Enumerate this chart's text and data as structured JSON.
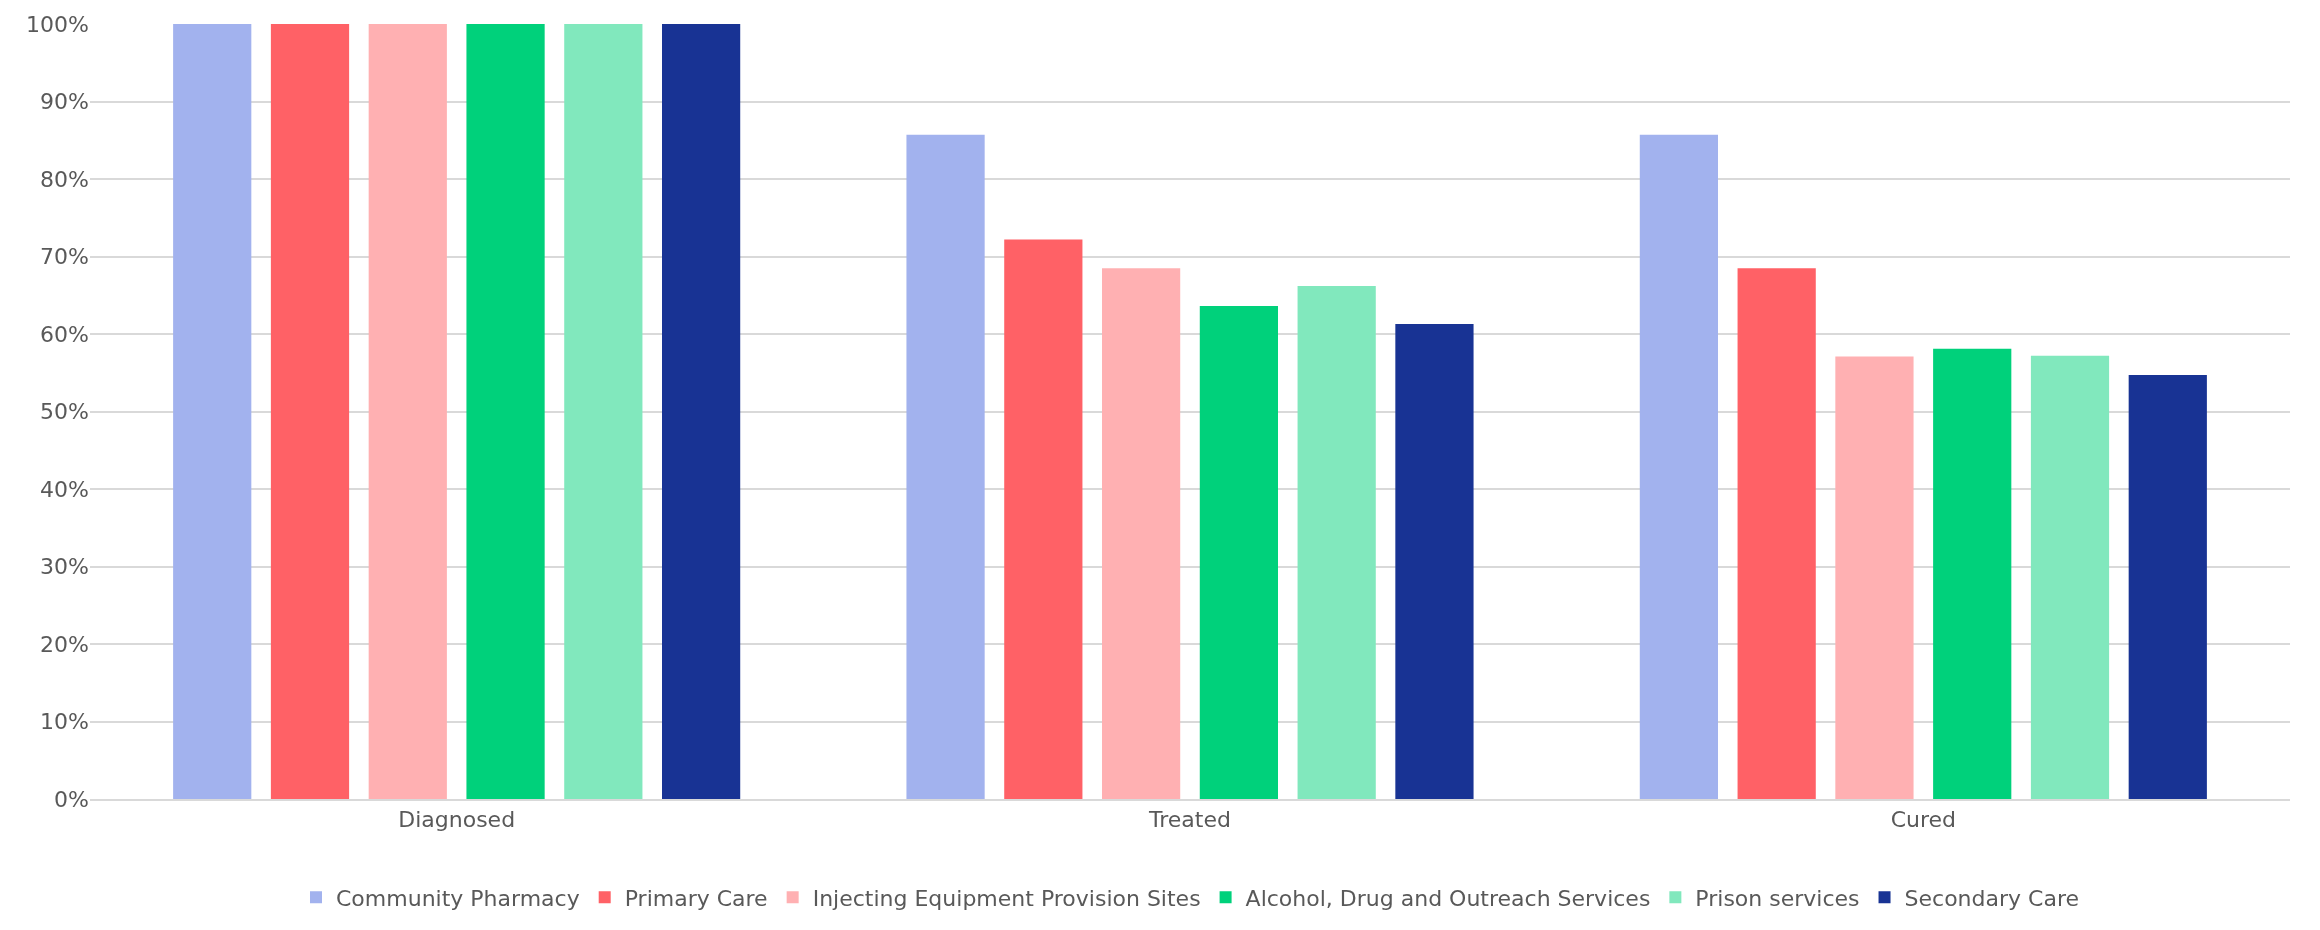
{
  "chart_data": {
    "type": "bar",
    "categories": [
      "Diagnosed",
      "Treated",
      "Cured"
    ],
    "series": [
      {
        "name": "Community Pharmacy",
        "color": "#a2b2ee",
        "values": [
          100,
          85.7,
          85.7
        ]
      },
      {
        "name": "Primary Care",
        "color": "#ff6166",
        "values": [
          100,
          72.2,
          68.5
        ]
      },
      {
        "name": "Injecting Equipment Provision Sites",
        "color": "#ffb0b2",
        "values": [
          100,
          68.5,
          57.1
        ]
      },
      {
        "name": "Alcohol, Drug and Outreach Services",
        "color": "#00d17b",
        "values": [
          100,
          63.6,
          58.1
        ]
      },
      {
        "name": "Prison services",
        "color": "#81e8bd",
        "values": [
          100,
          66.2,
          57.2
        ]
      },
      {
        "name": "Secondary Care",
        "color": "#183394",
        "values": [
          100,
          61.3,
          54.7
        ]
      }
    ],
    "ylim": [
      0,
      100
    ],
    "yticks": [
      {
        "value": 0,
        "label": "0%"
      },
      {
        "value": 10,
        "label": "10%"
      },
      {
        "value": 20,
        "label": "20%"
      },
      {
        "value": 30,
        "label": "30%"
      },
      {
        "value": 40,
        "label": "40%"
      },
      {
        "value": 50,
        "label": "50%"
      },
      {
        "value": 60,
        "label": "60%"
      },
      {
        "value": 70,
        "label": "70%"
      },
      {
        "value": 80,
        "label": "80%"
      },
      {
        "value": 90,
        "label": "90%"
      },
      {
        "value": 100,
        "label": "100%"
      }
    ],
    "grid": "y",
    "legend": "bottom"
  }
}
